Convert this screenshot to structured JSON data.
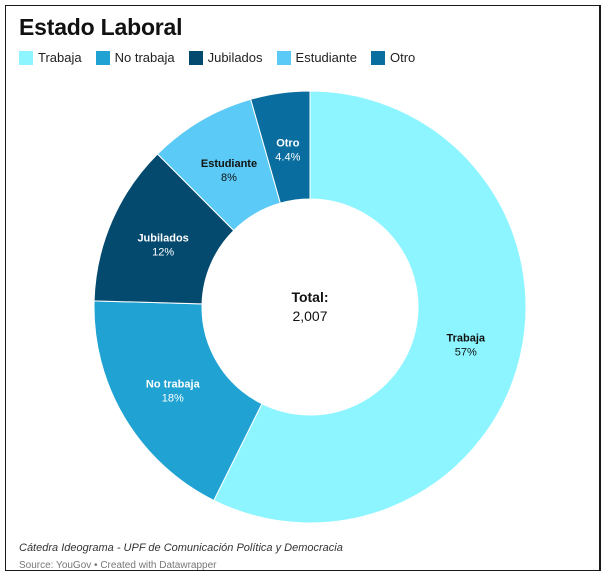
{
  "chart_data": {
    "type": "pie",
    "title": "Estado Laboral",
    "categories": [
      "Trabaja",
      "No trabaja",
      "Jubilados",
      "Estudiante",
      "Otro"
    ],
    "values": [
      57,
      18,
      12,
      8,
      4.4
    ],
    "value_labels": [
      "57%",
      "18%",
      "12%",
      "8%",
      "4.4%"
    ],
    "colors": [
      "#8cf5ff",
      "#20a3d3",
      "#04496e",
      "#5ccaf6",
      "#0a6d9f"
    ],
    "label_colors": [
      "#111111",
      "#ffffff",
      "#ffffff",
      "#111111",
      "#ffffff"
    ],
    "center_label": "Total:",
    "center_value": "2,007",
    "legend_position": "top-left",
    "donut": true
  },
  "footer": {
    "note": "Cátedra Ideograma - UPF de Comunicación Política y Democracia",
    "source": "Source: YouGov • Created with Datawrapper"
  }
}
